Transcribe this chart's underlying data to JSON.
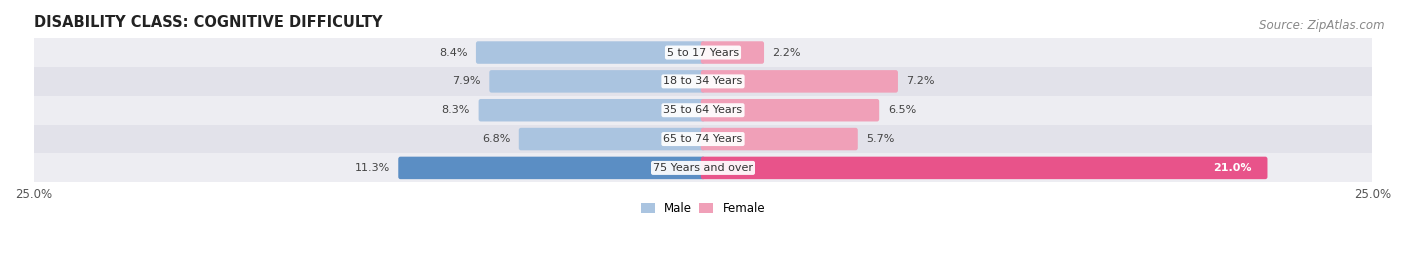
{
  "title": "DISABILITY CLASS: COGNITIVE DIFFICULTY",
  "source": "Source: ZipAtlas.com",
  "categories": [
    "5 to 17 Years",
    "18 to 34 Years",
    "35 to 64 Years",
    "65 to 74 Years",
    "75 Years and over"
  ],
  "male_values": [
    8.4,
    7.9,
    8.3,
    6.8,
    11.3
  ],
  "female_values": [
    2.2,
    7.2,
    6.5,
    5.7,
    21.0
  ],
  "max_val": 25.0,
  "male_color_light": "#aac4e0",
  "male_color_dark": "#5b8ec4",
  "female_color_light": "#f0a0b8",
  "female_color_dark": "#e8538a",
  "row_bg_color_odd": "#ededf2",
  "row_bg_color_even": "#e2e2ea",
  "title_fontsize": 10.5,
  "label_fontsize": 8.0,
  "tick_fontsize": 8.5,
  "source_fontsize": 8.5
}
